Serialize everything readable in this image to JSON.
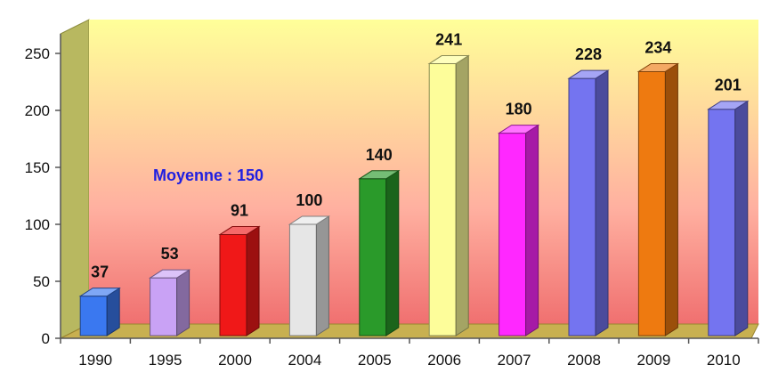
{
  "chart_data": {
    "type": "bar",
    "style": "3d",
    "categories": [
      "1990",
      "1995",
      "2000",
      "2004",
      "2005",
      "2006",
      "2007",
      "2008",
      "2009",
      "2010"
    ],
    "values": [
      37,
      53,
      91,
      100,
      140,
      241,
      180,
      228,
      234,
      201
    ],
    "data_labels": [
      "37",
      "53",
      "91",
      "100",
      "140",
      "241",
      "180",
      "228",
      "234",
      "201"
    ],
    "bar_colors": [
      "#3a78f0",
      "#c9a2f5",
      "#f01818",
      "#e6e6e6",
      "#2a9a2a",
      "#fdfd9a",
      "#ff28ff",
      "#7474f0",
      "#ee7a10",
      "#7474f0"
    ],
    "title": "",
    "xlabel": "",
    "ylabel": "",
    "ylim": [
      0,
      250
    ],
    "y_ticks": [
      0,
      50,
      100,
      150,
      200,
      250
    ],
    "y_tick_labels": [
      "0",
      "50",
      "100",
      "150",
      "200",
      "250"
    ],
    "grid": false,
    "legend": "none",
    "background_gradient": [
      "#ffff99",
      "#ffb0a0",
      "#f07070"
    ],
    "annotation": {
      "text": "Moyenne : 150",
      "color": "#2020e0"
    }
  }
}
